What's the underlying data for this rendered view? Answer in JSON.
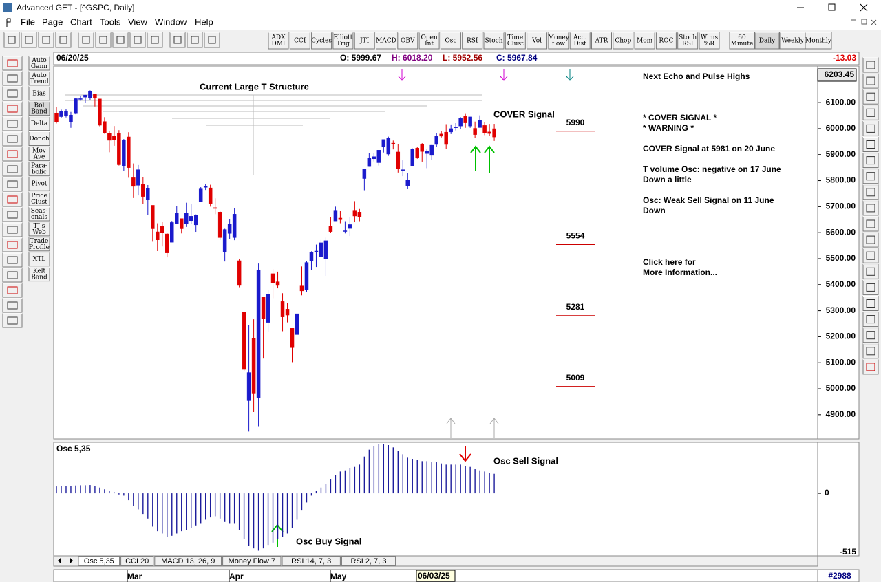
{
  "window": {
    "title": "Advanced GET - [^GSPC, Daily]"
  },
  "menu": [
    "File",
    "Page",
    "Chart",
    "Tools",
    "View",
    "Window",
    "Help"
  ],
  "toolbar": [
    [
      "ADX",
      "DMI"
    ],
    [
      "CCI"
    ],
    [
      "Cycles"
    ],
    [
      "Elliott",
      "Trig"
    ],
    [
      "JTI"
    ],
    [
      "MACD"
    ],
    [
      "OBV"
    ],
    [
      "Open",
      "Int"
    ],
    [
      "Osc"
    ],
    [
      "RSI"
    ],
    [
      "Stoch"
    ],
    [
      "Time",
      "Clust"
    ],
    [
      "Vol"
    ],
    [
      "Money",
      "flow"
    ],
    [
      "Acc.",
      "Dist"
    ],
    [
      "ATR"
    ],
    [
      "Chop"
    ],
    [
      "Mom"
    ],
    [
      "ROC"
    ],
    [
      "Stoch",
      "RSI"
    ],
    [
      "Wlms",
      "%R"
    ]
  ],
  "timeframes": [
    [
      "60",
      "Minute"
    ],
    [
      "Daily"
    ],
    [
      "Weekly"
    ],
    [
      "Monthly"
    ]
  ],
  "side_tools": [
    [
      "Auto",
      "Gann"
    ],
    [
      "Auto",
      "Trend"
    ],
    [
      "Bias"
    ],
    [
      "Bol",
      "Band"
    ],
    [
      "Delta"
    ],
    [
      "Donch"
    ],
    [
      "Mov",
      "Ave"
    ],
    [
      "Para-",
      "bolic"
    ],
    [
      "Pivot"
    ],
    [
      "Price",
      "Clust"
    ],
    [
      "Seas-",
      "onals"
    ],
    [
      "TJ's",
      "Web"
    ],
    [
      "Trade",
      "Profile"
    ],
    [
      "XTL"
    ],
    [
      "Kelt",
      "Band"
    ]
  ],
  "header": {
    "date": "06/20/25",
    "open": "O: 5999.67",
    "high": "H: 6018.20",
    "low": "L: 5952.56",
    "close": "C: 5967.84",
    "change": -13.03
  },
  "price_chart": {
    "type": "candlestick",
    "up_color": "#1a1acc",
    "down_color": "#e00000",
    "ylim": [
      4807,
      6203.45
    ],
    "yticks": [
      {
        "value": 6100,
        "label": "6100.00"
      },
      {
        "value": 6000,
        "label": "6000.00"
      },
      {
        "value": 5900,
        "label": "5900.00"
      },
      {
        "value": 5800,
        "label": "5800.00"
      },
      {
        "value": 5700,
        "label": "5700.00"
      },
      {
        "value": 5600,
        "label": "5600.00"
      },
      {
        "value": 5500,
        "label": "5500.00"
      },
      {
        "value": 5400,
        "label": "5400.00"
      },
      {
        "value": 5300,
        "label": "5300.00"
      },
      {
        "value": 5200,
        "label": "5200.00"
      },
      {
        "value": 5100,
        "label": "5100.00"
      },
      {
        "value": 5000,
        "label": "5000.00"
      },
      {
        "value": 4900,
        "label": "4900.00"
      }
    ],
    "levels": [
      5990,
      5554,
      5281,
      5009
    ],
    "level_color": "#cc0000",
    "annotations": [
      "Current Large T Structure",
      "COVER Signal"
    ],
    "ohlc": [
      [
        6060,
        6084,
        6020,
        6026
      ],
      [
        6046,
        6073,
        6040,
        6066
      ],
      [
        6050,
        6076,
        6043,
        6068
      ],
      [
        6025,
        6064,
        6003,
        6052
      ],
      [
        6060,
        6116,
        6055,
        6115
      ],
      [
        6115,
        6127,
        6107,
        6115
      ],
      [
        6121,
        6130,
        6100,
        6129
      ],
      [
        6118,
        6147,
        6111,
        6144
      ],
      [
        6134,
        6134,
        6085,
        6118
      ],
      [
        6114,
        6115,
        6009,
        6013
      ],
      [
        6027,
        6044,
        5980,
        5983
      ],
      [
        5982,
        5992,
        5909,
        5955
      ],
      [
        5971,
        6010,
        5934,
        5956
      ],
      [
        5981,
        5994,
        5858,
        5861
      ],
      [
        5857,
        5960,
        5837,
        5955
      ],
      [
        5968,
        5986,
        5811,
        5850
      ],
      [
        5811,
        5866,
        5733,
        5778
      ],
      [
        5782,
        5860,
        5743,
        5842
      ],
      [
        5785,
        5813,
        5711,
        5739
      ],
      [
        5726,
        5783,
        5667,
        5770
      ],
      [
        5705,
        5705,
        5565,
        5615
      ],
      [
        5603,
        5636,
        5529,
        5572
      ],
      [
        5624,
        5642,
        5547,
        5599
      ],
      [
        5595,
        5598,
        5505,
        5522
      ],
      [
        5563,
        5645,
        5563,
        5639
      ],
      [
        5635,
        5703,
        5633,
        5675
      ],
      [
        5654,
        5654,
        5597,
        5615
      ],
      [
        5633,
        5715,
        5622,
        5675
      ],
      [
        5646,
        5711,
        5633,
        5663
      ],
      [
        5630,
        5670,
        5603,
        5668
      ],
      [
        5718,
        5775,
        5718,
        5768
      ],
      [
        5776,
        5786,
        5764,
        5777
      ],
      [
        5772,
        5784,
        5700,
        5712
      ],
      [
        5696,
        5732,
        5671,
        5693
      ],
      [
        5679,
        5685,
        5572,
        5581
      ],
      [
        5527,
        5615,
        5489,
        5612
      ],
      [
        5597,
        5651,
        5574,
        5633
      ],
      [
        5581,
        5695,
        5571,
        5671
      ],
      [
        5492,
        5500,
        5390,
        5397
      ],
      [
        5293,
        5293,
        5069,
        5074
      ],
      [
        4954,
        5246,
        4835,
        5062
      ],
      [
        5194,
        5267,
        4910,
        4983
      ],
      [
        4966,
        5481,
        4856,
        5457
      ],
      [
        5353,
        5353,
        5116,
        5268
      ],
      [
        5255,
        5381,
        5220,
        5363
      ],
      [
        5442,
        5460,
        5348,
        5406
      ],
      [
        5411,
        5450,
        5386,
        5397
      ],
      [
        5335,
        5367,
        5221,
        5276
      ],
      [
        5306,
        5329,
        5255,
        5283
      ],
      [
        5232,
        5232,
        5102,
        5158
      ],
      [
        5208,
        5310,
        5208,
        5288
      ],
      [
        5395,
        5470,
        5359,
        5376
      ],
      [
        5381,
        5490,
        5371,
        5485
      ],
      [
        5490,
        5528,
        5455,
        5525
      ],
      [
        5529,
        5554,
        5468,
        5529
      ],
      [
        5508,
        5572,
        5505,
        5561
      ],
      [
        5499,
        5581,
        5434,
        5569
      ],
      [
        5625,
        5659,
        5598,
        5604
      ],
      [
        5645,
        5700,
        5645,
        5686
      ],
      [
        5656,
        5684,
        5636,
        5650
      ],
      [
        5606,
        5644,
        5597,
        5607
      ],
      [
        5616,
        5660,
        5587,
        5631
      ],
      [
        5686,
        5721,
        5640,
        5664
      ],
      [
        5679,
        5691,
        5644,
        5660
      ],
      [
        5808,
        5844,
        5763,
        5844
      ],
      [
        5854,
        5907,
        5853,
        5886
      ],
      [
        5884,
        5906,
        5874,
        5892
      ],
      [
        5869,
        5917,
        5858,
        5917
      ],
      [
        5929,
        5958,
        5908,
        5958
      ],
      [
        5902,
        5969,
        5895,
        5964
      ],
      [
        5944,
        5954,
        5920,
        5940
      ],
      [
        5910,
        5939,
        5831,
        5845
      ],
      [
        5841,
        5878,
        5817,
        5842
      ],
      [
        5781,
        5829,
        5767,
        5803
      ],
      [
        5855,
        5924,
        5855,
        5922
      ],
      [
        5925,
        5930,
        5884,
        5889
      ],
      [
        5939,
        5944,
        5873,
        5912
      ],
      [
        5904,
        5920,
        5848,
        5912
      ],
      [
        5897,
        5937,
        5879,
        5936
      ],
      [
        5939,
        5982,
        5931,
        5970
      ],
      [
        5979,
        5991,
        5966,
        5971
      ],
      [
        5986,
        6017,
        5921,
        5939
      ],
      [
        5987,
        6016,
        5979,
        6000
      ],
      [
        6005,
        6021,
        5993,
        6006
      ],
      [
        6010,
        6044,
        5999,
        6039
      ],
      [
        6049,
        6059,
        6003,
        6022
      ],
      [
        6010,
        6045,
        6003,
        6045
      ],
      [
        6001,
        6027,
        5963,
        5977
      ],
      [
        6004,
        6051,
        6004,
        6033
      ],
      [
        6012,
        6024,
        5975,
        5982
      ],
      [
        5987,
        6018,
        5971,
        5981
      ],
      [
        5999.67,
        6018.2,
        5952.56,
        5967.84
      ]
    ]
  },
  "info_panel": [
    "Next Echo and Pulse Highs",
    "* COVER SIGNAL *",
    "* WARNING *",
    "COVER Signal at 5981 on 20 June",
    "T volume Osc: negative on 17 June",
    "Down a little",
    "Osc: Weak Sell Signal on 11 June",
    "Down",
    "Click here for",
    "More Information..."
  ],
  "osc_chart": {
    "type": "histogram",
    "title": "Osc 5,35",
    "color": "#1c1c9c",
    "ylim": [
      -515,
      432
    ],
    "yticks": [
      0
    ],
    "annotations": [
      "Osc Sell Signal",
      "Osc Buy Signal"
    ],
    "values": [
      60,
      62,
      65,
      63,
      68,
      70,
      70,
      72,
      65,
      50,
      35,
      20,
      10,
      -10,
      -20,
      -60,
      -110,
      -140,
      -180,
      -220,
      -290,
      -330,
      -350,
      -380,
      -370,
      -350,
      -330,
      -320,
      -300,
      -280,
      -260,
      -230,
      -210,
      -200,
      -220,
      -250,
      -260,
      -260,
      -320,
      -400,
      -460,
      -480,
      -500,
      -480,
      -450,
      -430,
      -400,
      -380,
      -350,
      -300,
      -230,
      -150,
      -80,
      -20,
      20,
      50,
      80,
      120,
      160,
      190,
      200,
      220,
      230,
      250,
      320,
      380,
      410,
      430,
      430,
      420,
      400,
      370,
      340,
      310,
      300,
      290,
      280,
      280,
      270,
      270,
      260,
      250,
      250,
      250,
      250,
      240,
      230,
      210,
      200,
      190,
      180,
      170
    ]
  },
  "tabs": [
    "Osc 5,35",
    "CCI 20",
    "MACD 13, 26, 9",
    "Money Flow 7",
    "RSI 14, 7, 3",
    "RSI 2, 7, 3"
  ],
  "footer": {
    "months": [
      "Mar",
      "Apr",
      "May"
    ],
    "cursor_date": "06/03/25",
    "bar_number": "#2988"
  }
}
